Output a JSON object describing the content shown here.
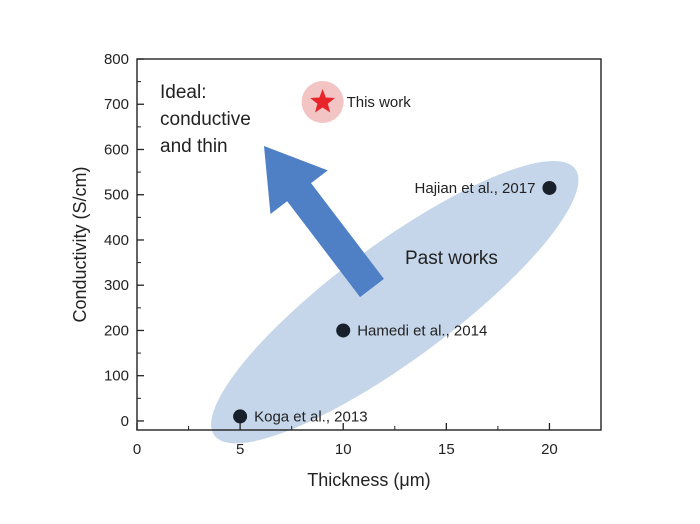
{
  "chart_data": {
    "type": "scatter",
    "xlabel": "Thickness (μm)",
    "ylabel": "Conductivity (S/cm)",
    "xlim": [
      0,
      22.5
    ],
    "ylim": [
      -20,
      800
    ],
    "xticks": [
      0,
      5,
      10,
      15,
      20
    ],
    "yticks": [
      0,
      100,
      200,
      300,
      400,
      500,
      600,
      700,
      800
    ],
    "grid": false,
    "points": [
      {
        "label": "Koga et al., 2013",
        "x": 5,
        "y": 10
      },
      {
        "label": "Hamedi et al., 2014",
        "x": 10,
        "y": 200
      },
      {
        "label": "Hajian et al., 2017",
        "x": 20,
        "y": 515
      }
    ],
    "highlight": {
      "label": "This work",
      "x": 9,
      "y": 705,
      "marker": "star"
    },
    "region_label": "Past works",
    "ideal_note": [
      "Ideal:",
      "conductive",
      "and thin"
    ],
    "colors": {
      "point": "#17202b",
      "star": "#e8242a",
      "star_halo": "#f2c4c4",
      "ellipse": "#c6d6ea",
      "arrow": "#4f80c5",
      "axis": "#222222"
    }
  }
}
